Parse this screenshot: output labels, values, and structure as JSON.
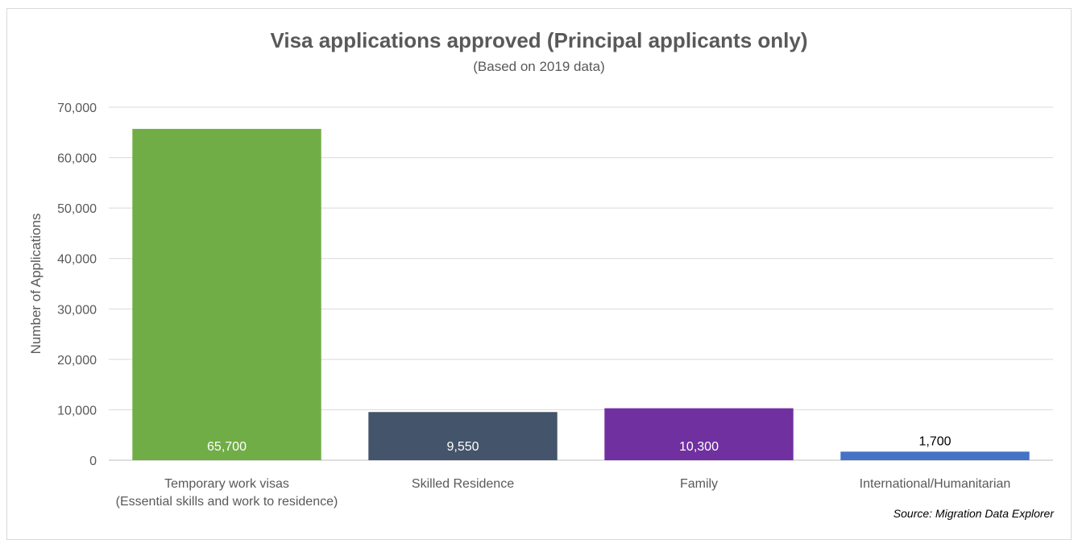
{
  "chart_data": {
    "type": "bar",
    "title": "Visa applications approved (Principal applicants only)",
    "subtitle": "(Based on 2019 data)",
    "xlabel": "",
    "ylabel": "Number of Applications",
    "ylim": [
      0,
      70000
    ],
    "yticks": [
      0,
      10000,
      20000,
      30000,
      40000,
      50000,
      60000,
      70000
    ],
    "ytick_labels": [
      "0",
      "10,000",
      "20,000",
      "30,000",
      "40,000",
      "50,000",
      "60,000",
      "70,000"
    ],
    "categories": [
      [
        "Temporary work visas",
        "(Essential skills and work to residence)"
      ],
      [
        "Skilled Residence"
      ],
      [
        "Family"
      ],
      [
        "International/Humanitarian"
      ]
    ],
    "values": [
      65700,
      9550,
      10300,
      1700
    ],
    "data_labels": [
      "65,700",
      "9,550",
      "10,300",
      "1,700"
    ],
    "bar_colors": [
      "#70ad47",
      "#44546a",
      "#7030a0",
      "#4472c4"
    ],
    "label_colors": [
      "#ffffff",
      "#ffffff",
      "#ffffff",
      "#000000"
    ],
    "grid": true,
    "legend": false,
    "source": "Source: Migration Data Explorer"
  }
}
